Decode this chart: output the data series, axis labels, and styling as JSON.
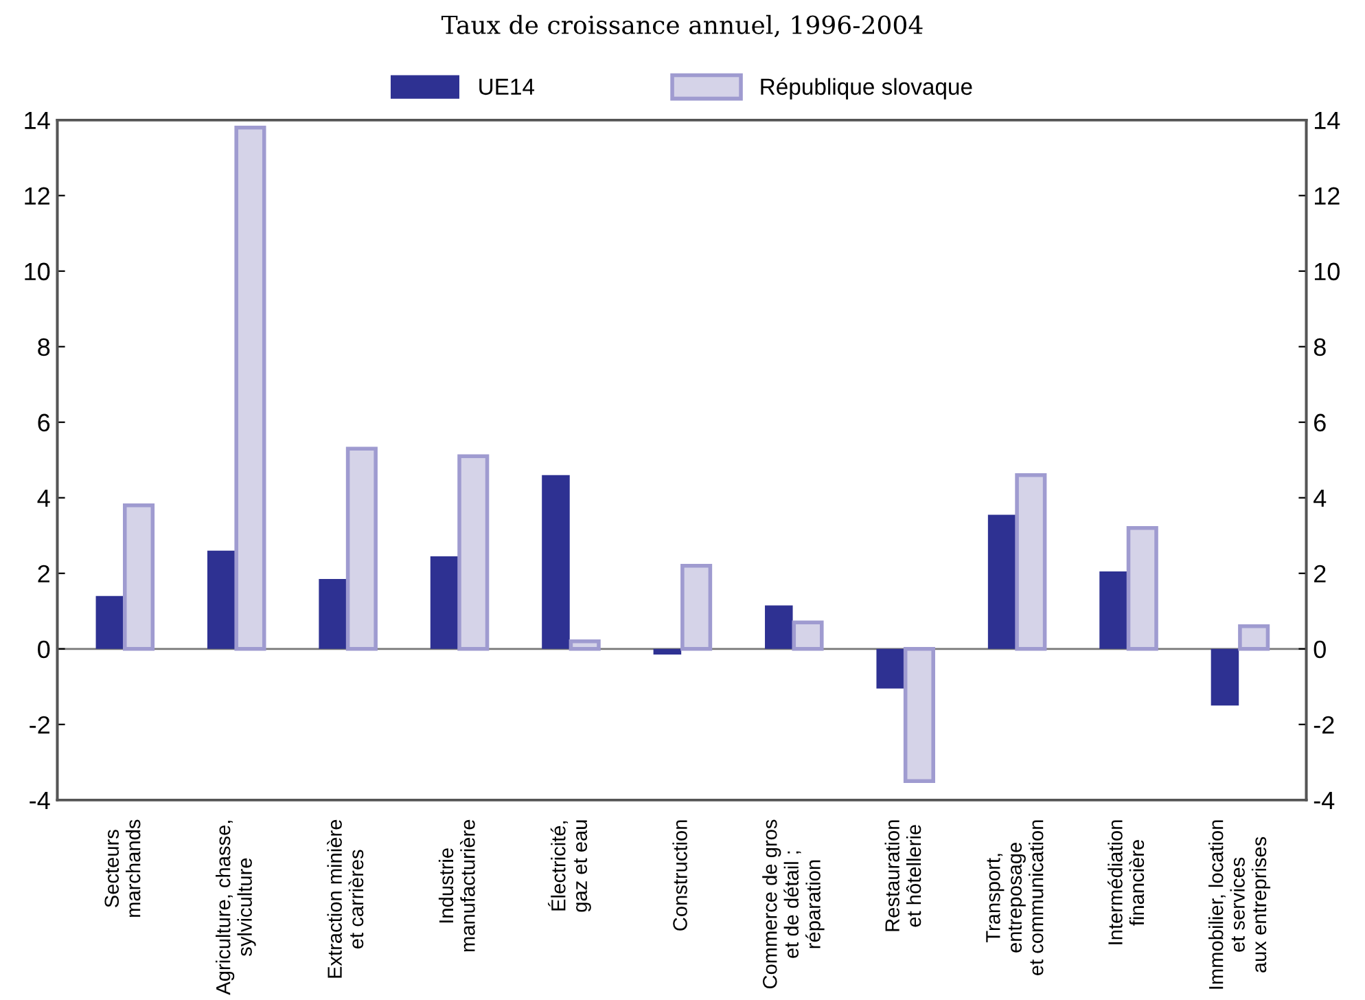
{
  "chart_data": {
    "type": "bar",
    "subtitle": "Taux de croissance annuel, 1996-2004",
    "categories": [
      "Secteurs\nmarchands",
      "Agriculture, chasse,\nsylviculture",
      "Extraction minière\net carrières",
      "Industrie\nmanufacturière",
      "Électricité,\ngaz et eau",
      "Construction",
      "Commerce de gros\net de détail ;\nréparation",
      "Restauration\net hôtellerie",
      "Transport,\nentreposage\net communication",
      "Intermédiation\nfinancière",
      "Immobilier, location\net services\naux entreprises"
    ],
    "series": [
      {
        "name": "UE14",
        "color": "#2e3192",
        "values": [
          1.4,
          2.6,
          1.85,
          2.45,
          4.6,
          -0.15,
          1.15,
          -1.05,
          3.55,
          2.05,
          -1.5
        ]
      },
      {
        "name": "République slovaque",
        "color": "#d5d3e8",
        "values": [
          3.8,
          13.8,
          5.3,
          5.1,
          0.2,
          2.2,
          0.7,
          -3.5,
          4.6,
          3.2,
          0.6
        ]
      }
    ],
    "ylim": [
      -4,
      14
    ],
    "yticks": [
      -4,
      -2,
      0,
      2,
      4,
      6,
      8,
      10,
      12,
      14
    ],
    "y2lim": [
      -4,
      14
    ],
    "y2ticks": [
      -4,
      -2,
      0,
      2,
      4,
      6,
      8,
      10,
      12,
      14
    ],
    "legend": "top"
  }
}
